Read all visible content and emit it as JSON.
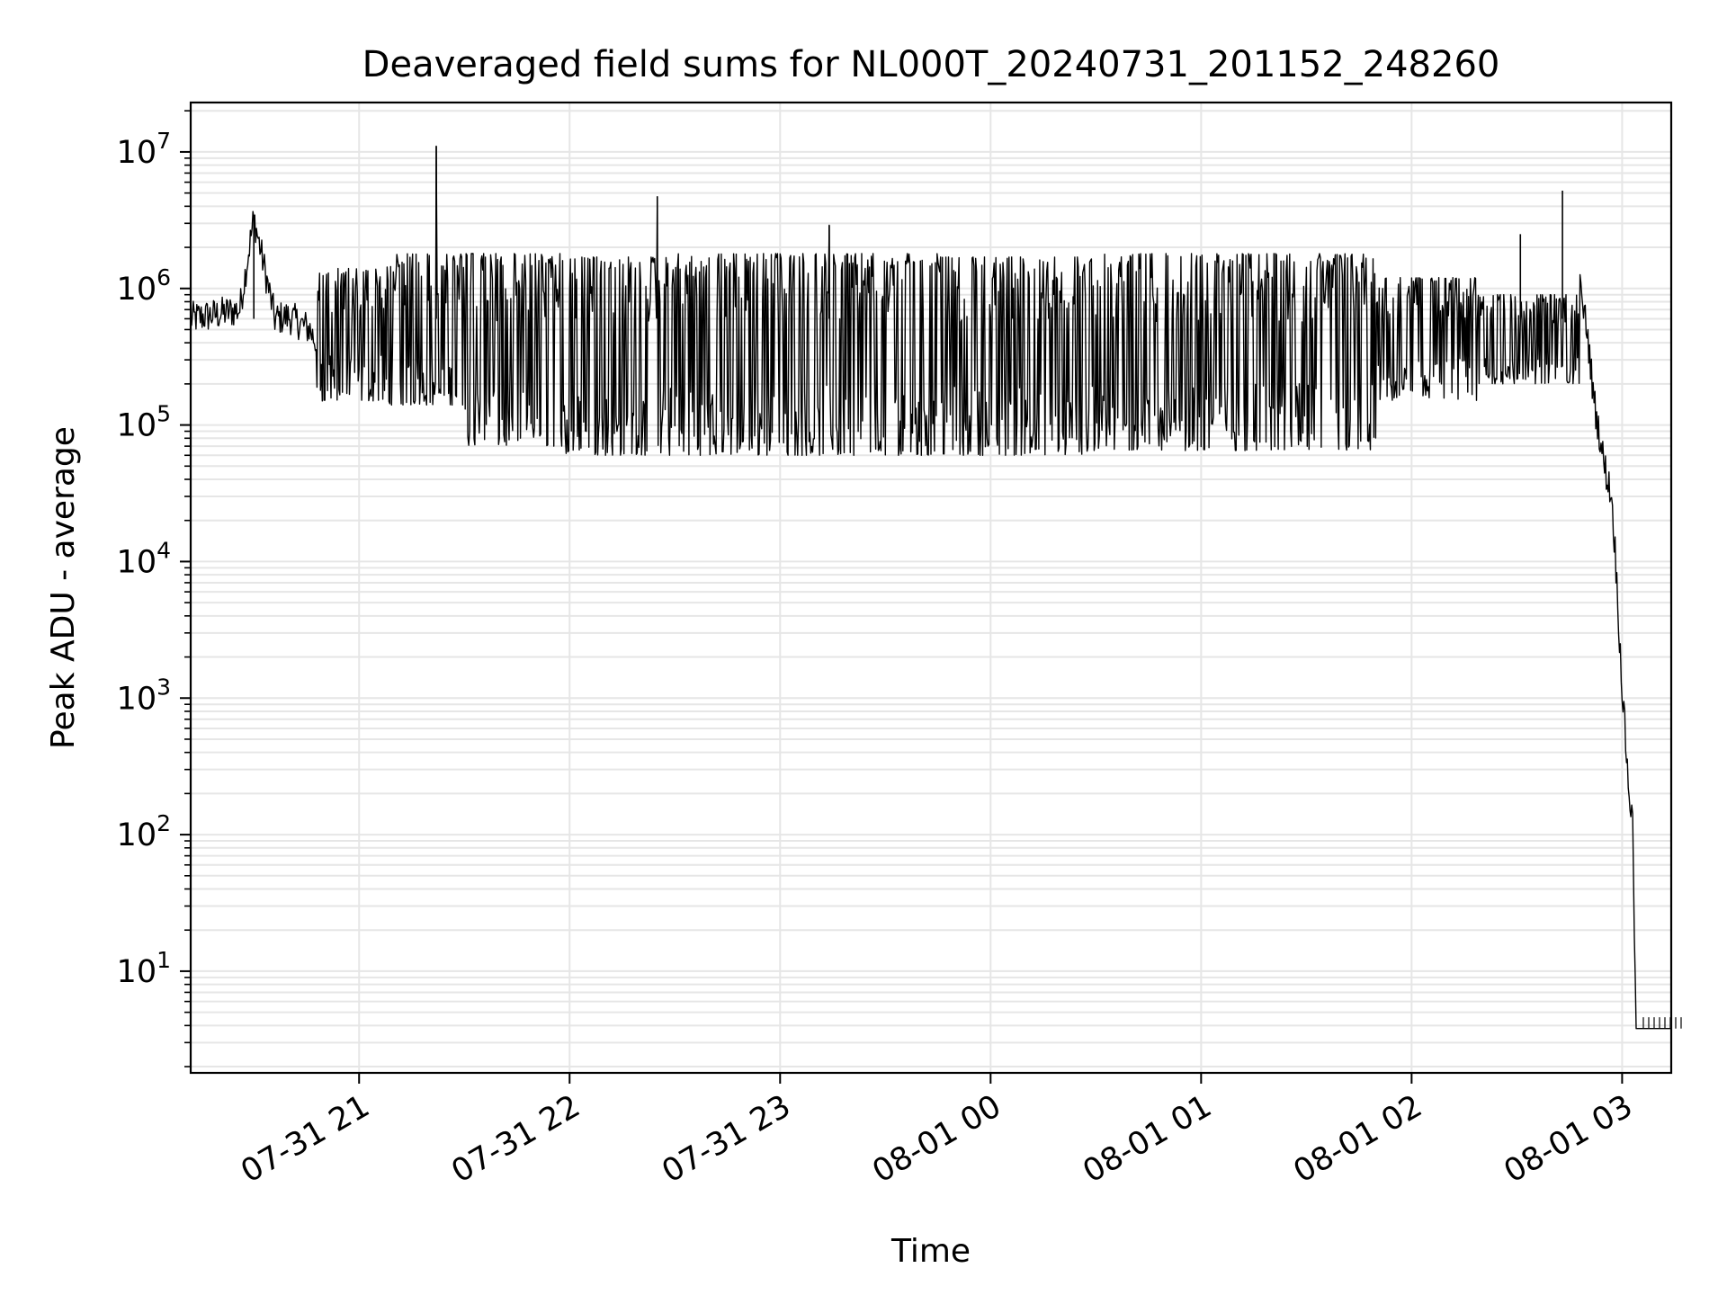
{
  "chart_data": {
    "type": "line",
    "title": "Deaveraged field sums for NL000T_20240731_201152_248260",
    "xlabel": "Time",
    "ylabel": "Peak ADU - average",
    "yscale": "log",
    "ylim": [
      1.8,
      23000000
    ],
    "xlim": [
      "2024-07-31 20:12",
      "2024-08-01 03:14"
    ],
    "grid": true,
    "line_color": "#000000",
    "grid_color": "#e6e6e6",
    "x_ticks": [
      "2024-07-31 21:00",
      "2024-07-31 22:00",
      "2024-07-31 23:00",
      "2024-08-01 00:00",
      "2024-08-01 01:00",
      "2024-08-01 02:00",
      "2024-08-01 03:00"
    ],
    "x_tick_labels": [
      "07-31 21",
      "07-31 22",
      "07-31 23",
      "08-01 00",
      "08-01 01",
      "08-01 02",
      "08-01 03"
    ],
    "y_ticks": [
      10,
      100,
      1000,
      10000,
      100000,
      1000000,
      10000000
    ],
    "y_tick_labels": [
      {
        "base": "10",
        "exp": "1"
      },
      {
        "base": "10",
        "exp": "2"
      },
      {
        "base": "10",
        "exp": "3"
      },
      {
        "base": "10",
        "exp": "4"
      },
      {
        "base": "10",
        "exp": "5"
      },
      {
        "base": "10",
        "exp": "6"
      },
      {
        "base": "10",
        "exp": "7"
      }
    ],
    "series": [
      {
        "x": [
          "2024-07-31 20:12",
          "2024-07-31 20:20",
          "2024-07-31 20:26",
          "2024-07-31 20:30",
          "2024-07-31 20:36",
          "2024-07-31 20:40",
          "2024-07-31 20:46",
          "2024-07-31 20:48",
          "2024-07-31 21:10",
          "2024-07-31 21:22",
          "2024-07-31 22:25",
          "2024-07-31 23:14",
          "2024-08-01 02:31",
          "2024-08-01 02:43",
          "2024-08-01 02:50",
          "2024-08-01 02:52",
          "2024-08-01 02:55",
          "2024-08-01 02:57",
          "2024-08-01 02:58",
          "2024-08-01 03:00",
          "2024-08-01 03:02",
          "2024-08-01 03:03",
          "2024-08-01 03:04",
          "2024-08-01 03:06",
          "2024-08-01 03:14"
        ],
        "values": [
          600000,
          650000,
          700000,
          3300000,
          600000,
          620000,
          500000,
          380000,
          900000,
          11000000,
          4700000,
          2900000,
          2500000,
          5200000,
          500000,
          150000,
          50000,
          30000,
          12000,
          1200,
          200,
          120,
          3.8,
          3.8,
          3.8
        ]
      }
    ],
    "bands": [
      {
        "start": "2024-07-31 20:48",
        "end": "2024-07-31 21:08",
        "low": 150000,
        "high": 1400000
      },
      {
        "start": "2024-07-31 21:08",
        "end": "2024-07-31 21:30",
        "low": 140000,
        "high": 1800000
      },
      {
        "start": "2024-07-31 21:30",
        "end": "2024-07-31 21:58",
        "low": 70000,
        "high": 1800000
      },
      {
        "start": "2024-07-31 21:58",
        "end": "2024-07-31 22:28",
        "low": 60000,
        "high": 1700000
      },
      {
        "start": "2024-07-31 22:28",
        "end": "2024-07-31 23:45",
        "low": 60000,
        "high": 1800000
      },
      {
        "start": "2024-07-31 23:45",
        "end": "2024-08-01 00:30",
        "low": 60000,
        "high": 1700000
      },
      {
        "start": "2024-08-01 00:30",
        "end": "2024-08-01 01:50",
        "low": 65000,
        "high": 1800000
      },
      {
        "start": "2024-08-01 01:50",
        "end": "2024-08-01 02:20",
        "low": 150000,
        "high": 1200000
      },
      {
        "start": "2024-08-01 02:20",
        "end": "2024-08-01 02:48",
        "low": 200000,
        "high": 900000
      }
    ]
  }
}
